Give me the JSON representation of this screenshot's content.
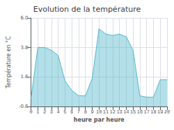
{
  "chart_data": {
    "type": "area",
    "title": "Evolution de la température",
    "x_label": "heure par heure",
    "y_label": "Température en °C",
    "x": [
      0,
      1,
      2,
      3,
      4,
      5,
      6,
      7,
      8,
      9,
      10,
      11,
      12,
      13,
      14,
      15,
      16,
      17,
      18,
      19,
      20
    ],
    "values": [
      0.0,
      3.8,
      3.8,
      3.6,
      3.2,
      1.3,
      0.6,
      0.2,
      0.2,
      1.5,
      5.2,
      4.8,
      4.7,
      4.8,
      4.6,
      3.6,
      0.2,
      0.1,
      0.1,
      1.4,
      1.4
    ],
    "color": "#55b8cc",
    "xlim": [
      0,
      20
    ],
    "xticks": [
      0,
      1,
      2,
      3,
      4,
      5,
      6,
      7,
      8,
      9,
      10,
      11,
      12,
      13,
      14,
      15,
      16,
      17,
      18,
      19,
      20
    ],
    "ylim": [
      -0.6,
      6.0
    ],
    "yticks": [
      -0.6,
      1.6,
      3.8,
      {
        "value": 6.0,
        "label": "6.0"
      }
    ],
    "grid": true
  }
}
